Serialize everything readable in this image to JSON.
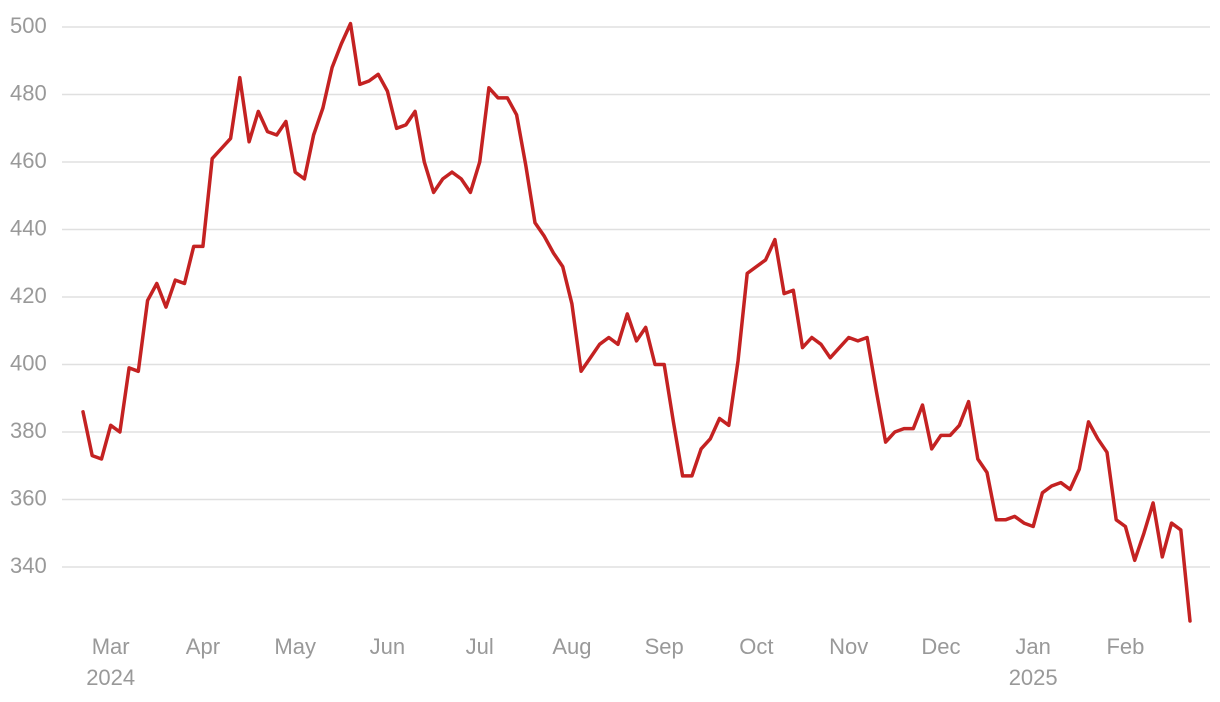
{
  "chart_data": {
    "type": "line",
    "categories": [
      null,
      null,
      null,
      "Mar",
      null,
      null,
      null,
      null,
      null,
      null,
      null,
      null,
      null,
      "Apr",
      null,
      null,
      null,
      null,
      null,
      null,
      null,
      null,
      null,
      "May",
      null,
      null,
      null,
      null,
      null,
      null,
      null,
      null,
      null,
      "Jun",
      null,
      null,
      null,
      null,
      null,
      null,
      null,
      null,
      null,
      "Jul",
      null,
      null,
      null,
      null,
      null,
      null,
      null,
      null,
      null,
      "Aug",
      null,
      null,
      null,
      null,
      null,
      null,
      null,
      null,
      null,
      "Sep",
      null,
      null,
      null,
      null,
      null,
      null,
      null,
      null,
      null,
      "Oct",
      null,
      null,
      null,
      null,
      null,
      null,
      null,
      null,
      null,
      "Nov",
      null,
      null,
      null,
      null,
      null,
      null,
      null,
      null,
      null,
      "Dec",
      null,
      null,
      null,
      null,
      null,
      null,
      null,
      null,
      null,
      "Jan",
      null,
      null,
      null,
      null,
      null,
      null,
      null,
      null,
      null,
      "Feb",
      null,
      null,
      null,
      null,
      null,
      null,
      null
    ],
    "category_years": [
      null,
      null,
      null,
      "2024",
      null,
      null,
      null,
      null,
      null,
      null,
      null,
      null,
      null,
      null,
      null,
      null,
      null,
      null,
      null,
      null,
      null,
      null,
      null,
      null,
      null,
      null,
      null,
      null,
      null,
      null,
      null,
      null,
      null,
      null,
      null,
      null,
      null,
      null,
      null,
      null,
      null,
      null,
      null,
      null,
      null,
      null,
      null,
      null,
      null,
      null,
      null,
      null,
      null,
      null,
      null,
      null,
      null,
      null,
      null,
      null,
      null,
      null,
      null,
      null,
      null,
      null,
      null,
      null,
      null,
      null,
      null,
      null,
      null,
      null,
      null,
      null,
      null,
      null,
      null,
      null,
      null,
      null,
      null,
      null,
      null,
      null,
      null,
      null,
      null,
      null,
      null,
      null,
      null,
      null,
      null,
      null,
      null,
      null,
      null,
      null,
      null,
      null,
      null,
      "2025",
      null,
      null,
      null,
      null,
      null,
      null,
      null,
      null,
      null,
      null,
      null,
      null,
      null,
      null,
      null,
      null,
      null
    ],
    "values": [
      386,
      373,
      372,
      382,
      380,
      399,
      398,
      419,
      424,
      417,
      425,
      424,
      435,
      435,
      461,
      464,
      467,
      485,
      466,
      475,
      469,
      468,
      472,
      457,
      455,
      468,
      476,
      488,
      495,
      501,
      483,
      484,
      486,
      481,
      470,
      471,
      475,
      460,
      451,
      455,
      457,
      455,
      451,
      460,
      482,
      479,
      479,
      474,
      459,
      442,
      438,
      433,
      429,
      418,
      398,
      402,
      406,
      408,
      406,
      415,
      407,
      411,
      400,
      400,
      383,
      367,
      367,
      375,
      378,
      384,
      382,
      401,
      427,
      429,
      431,
      437,
      421,
      422,
      405,
      408,
      406,
      402,
      405,
      408,
      407,
      408,
      392,
      377,
      380,
      381,
      381,
      388,
      375,
      379,
      379,
      382,
      389,
      372,
      368,
      354,
      354,
      355,
      353,
      352,
      362,
      364,
      365,
      363,
      369,
      383,
      378,
      374,
      354,
      352,
      342,
      350,
      359,
      343,
      353,
      351,
      324
    ],
    "color": "#c42222",
    "ylim": [
      320,
      500
    ],
    "yticks": [
      340,
      360,
      380,
      400,
      420,
      440,
      460,
      480,
      500
    ],
    "grid": true
  }
}
